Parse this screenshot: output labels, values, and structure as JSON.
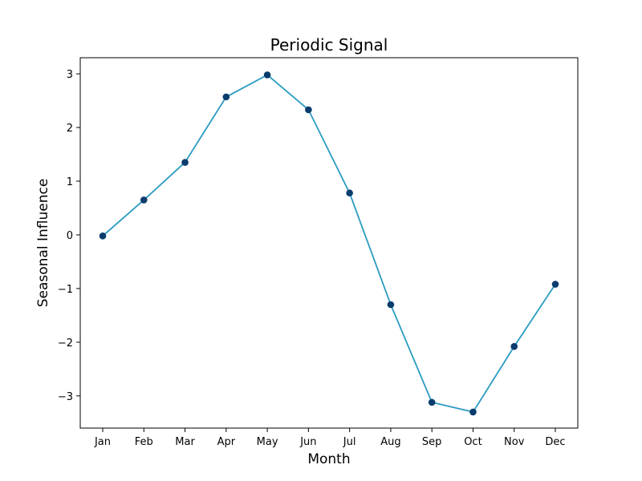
{
  "chart_data": {
    "type": "line",
    "title": "Periodic Signal",
    "xlabel": "Month",
    "ylabel": "Seasonal Influence",
    "categories": [
      "Jan",
      "Feb",
      "Mar",
      "Apr",
      "May",
      "Jun",
      "Jul",
      "Aug",
      "Sep",
      "Oct",
      "Nov",
      "Dec"
    ],
    "series": [
      {
        "values": [
          -0.02,
          0.65,
          1.35,
          2.57,
          2.98,
          2.33,
          0.78,
          -1.3,
          -3.12,
          -3.3,
          -2.08,
          -0.92
        ]
      }
    ],
    "ylim": [
      -3.6,
      3.3
    ],
    "yticks": [
      {
        "value": -3,
        "label": "−3"
      },
      {
        "value": -2,
        "label": "−2"
      },
      {
        "value": -1,
        "label": "−1"
      },
      {
        "value": 0,
        "label": "0"
      },
      {
        "value": 1,
        "label": "1"
      },
      {
        "value": 2,
        "label": "2"
      },
      {
        "value": 3,
        "label": "3"
      }
    ],
    "grid": false,
    "colors": {
      "line": "#2a9bc0",
      "marker": "#0b3c6e"
    }
  }
}
